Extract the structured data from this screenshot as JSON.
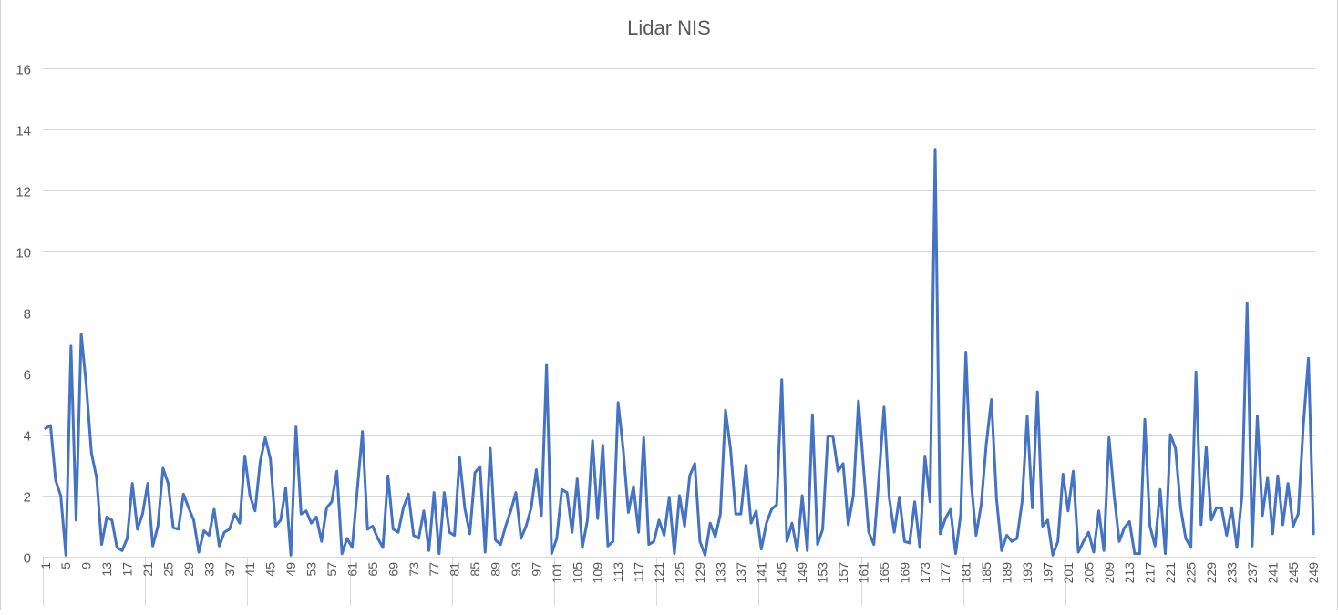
{
  "chart_data": {
    "type": "line",
    "title": "Lidar NIS",
    "xlabel": "",
    "ylabel": "",
    "ylim": [
      0,
      16
    ],
    "yticks": [
      0,
      2,
      4,
      6,
      8,
      10,
      12,
      14,
      16
    ],
    "grid": true,
    "legend": "none",
    "colors": {
      "line": "#4472C4",
      "grid": "#d9d9d9",
      "text": "#595959"
    },
    "x_tick_labels": [
      "1",
      "5",
      "9",
      "13",
      "17",
      "21",
      "25",
      "29",
      "33",
      "37",
      "41",
      "45",
      "49",
      "53",
      "57",
      "61",
      "65",
      "69",
      "73",
      "77",
      "81",
      "85",
      "89",
      "93",
      "97",
      "101",
      "105",
      "109",
      "113",
      "117",
      "121",
      "125",
      "129",
      "133",
      "137",
      "141",
      "145",
      "149",
      "153",
      "157",
      "161",
      "165",
      "169",
      "173",
      "177",
      "181",
      "185",
      "189",
      "193",
      "197",
      "201",
      "205",
      "209",
      "213",
      "217",
      "221",
      "225",
      "229",
      "233",
      "237",
      "241",
      "245",
      "249"
    ],
    "series": [
      {
        "values": [
          4.2,
          4.3,
          2.5,
          2.0,
          0.05,
          6.9,
          1.2,
          7.3,
          5.6,
          3.4,
          2.6,
          0.4,
          1.3,
          1.2,
          0.3,
          0.2,
          0.6,
          2.4,
          0.9,
          1.4,
          2.4,
          0.35,
          1.0,
          2.9,
          2.4,
          0.95,
          0.9,
          2.05,
          1.6,
          1.2,
          0.15,
          0.85,
          0.7,
          1.55,
          0.35,
          0.8,
          0.9,
          1.4,
          1.1,
          3.3,
          2.0,
          1.5,
          3.1,
          3.9,
          3.2,
          1.0,
          1.2,
          2.25,
          0.05,
          4.25,
          1.4,
          1.5,
          1.1,
          1.3,
          0.5,
          1.6,
          1.8,
          2.8,
          0.1,
          0.6,
          0.3,
          2.2,
          4.1,
          0.9,
          1.0,
          0.6,
          0.3,
          2.65,
          0.9,
          0.8,
          1.6,
          2.05,
          0.7,
          0.6,
          1.5,
          0.2,
          2.1,
          0.1,
          2.1,
          0.8,
          0.7,
          3.25,
          1.6,
          0.75,
          2.75,
          2.95,
          0.15,
          3.55,
          0.55,
          0.4,
          1.0,
          1.5,
          2.1,
          0.6,
          1.0,
          1.6,
          2.85,
          1.35,
          6.3,
          0.1,
          0.6,
          2.2,
          2.1,
          0.8,
          2.55,
          0.3,
          1.2,
          3.8,
          1.25,
          3.65,
          0.35,
          0.5,
          5.05,
          3.5,
          1.45,
          2.3,
          0.8,
          3.9,
          0.4,
          0.5,
          1.2,
          0.7,
          1.95,
          0.1,
          2.0,
          1.0,
          2.65,
          3.05,
          0.5,
          0.05,
          1.1,
          0.65,
          1.4,
          4.8,
          3.5,
          1.4,
          1.4,
          3.0,
          1.1,
          1.5,
          0.25,
          1.1,
          1.55,
          1.7,
          5.8,
          0.5,
          1.1,
          0.2,
          2.0,
          0.2,
          4.65,
          0.4,
          0.9,
          3.95,
          3.95,
          2.8,
          3.05,
          1.05,
          2.0,
          5.1,
          2.9,
          0.8,
          0.4,
          2.6,
          4.9,
          1.95,
          0.8,
          1.95,
          0.5,
          0.45,
          1.8,
          0.3,
          3.3,
          1.8,
          13.35,
          0.75,
          1.25,
          1.55,
          0.1,
          1.4,
          6.7,
          2.5,
          0.7,
          1.7,
          3.7,
          5.15,
          1.9,
          0.2,
          0.7,
          0.5,
          0.6,
          1.8,
          4.6,
          1.6,
          5.4,
          1.0,
          1.2,
          0.05,
          0.5,
          2.7,
          1.5,
          2.8,
          0.15,
          0.5,
          0.8,
          0.15,
          1.5,
          0.2,
          3.9,
          2.0,
          0.5,
          0.95,
          1.15,
          0.1,
          0.1,
          4.5,
          1.0,
          0.35,
          2.2,
          0.1,
          4.0,
          3.55,
          1.6,
          0.6,
          0.3,
          6.05,
          1.05,
          3.6,
          1.2,
          1.6,
          1.6,
          0.7,
          1.6,
          0.3,
          2.0,
          8.3,
          0.35,
          4.6,
          1.35,
          2.6,
          0.75,
          2.65,
          1.05,
          2.4,
          1.0,
          1.4,
          4.3,
          6.5,
          0.75
        ]
      }
    ]
  }
}
